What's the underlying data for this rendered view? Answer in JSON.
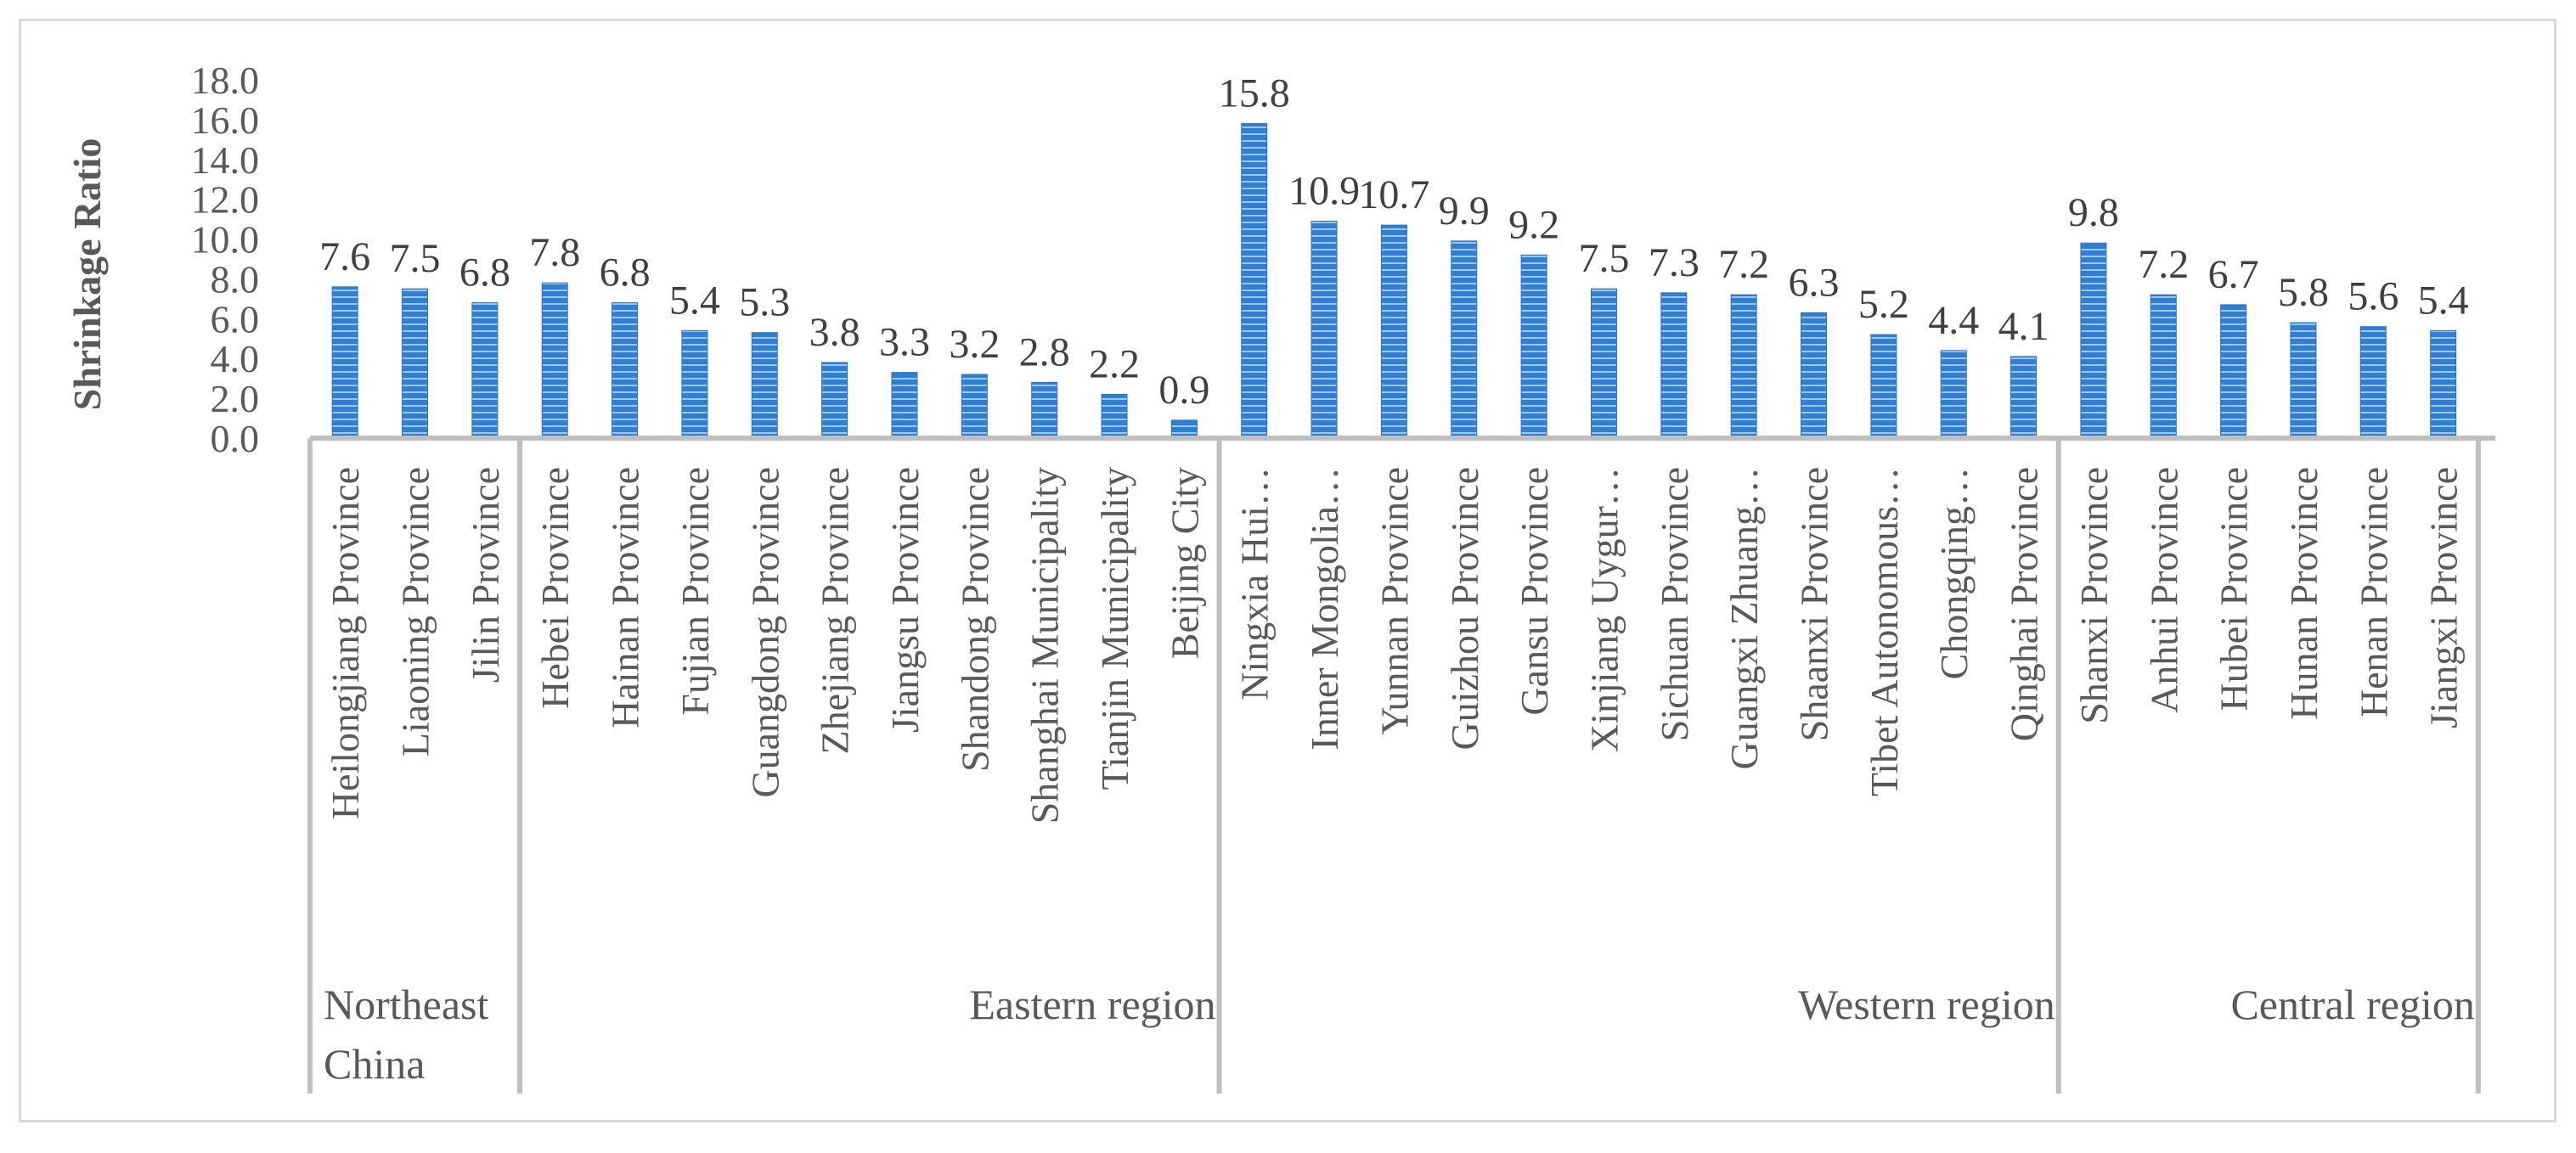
{
  "chart_data": {
    "type": "bar",
    "ylabel": "Shrinkage Ratio",
    "ylim": [
      0,
      18
    ],
    "yticks": [
      "0.0",
      "2.0",
      "4.0",
      "6.0",
      "8.0",
      "10.0",
      "12.0",
      "14.0",
      "16.0",
      "18.0"
    ],
    "grid": false,
    "legend": "none",
    "bar_color": "#2f7fd4",
    "groups": [
      {
        "name": "Northeast China",
        "label_lines": [
          "Northeast",
          "China"
        ],
        "categories": [
          "Heilongjiang Province",
          "Liaoning Province",
          "Jilin Province"
        ],
        "values": [
          7.6,
          7.5,
          6.8
        ]
      },
      {
        "name": "Eastern region",
        "label_lines": [
          "Eastern region"
        ],
        "categories": [
          "Hebei Province",
          "Hainan Province",
          "Fujian Province",
          "Guangdong Province",
          "Zhejiang Province",
          "Jiangsu Province",
          "Shandong Province",
          "Shanghai Municipality",
          "Tianjin Municipality",
          "Beijing City"
        ],
        "values": [
          7.8,
          6.8,
          5.4,
          5.3,
          3.8,
          3.3,
          3.2,
          2.8,
          2.2,
          0.9
        ]
      },
      {
        "name": "Western region",
        "label_lines": [
          "Western region"
        ],
        "categories": [
          "Ningxia Hui…",
          "Inner Mongolia…",
          "Yunnan Province",
          "Guizhou Province",
          "Gansu Province",
          "Xinjiang Uygur…",
          "Sichuan Province",
          "Guangxi Zhuang…",
          "Shaanxi Province",
          "Tibet Autonomous…",
          "Chongqing…",
          "Qinghai Province"
        ],
        "values": [
          15.8,
          10.9,
          10.7,
          9.9,
          9.2,
          7.5,
          7.3,
          7.2,
          6.3,
          5.2,
          4.4,
          4.1
        ]
      },
      {
        "name": "Central region",
        "label_lines": [
          "Central region"
        ],
        "categories": [
          "Shanxi Province",
          "Anhui Province",
          "Hubei Province",
          "Hunan Province",
          "Henan Province",
          "Jiangxi Province"
        ],
        "values": [
          9.8,
          7.2,
          6.7,
          5.8,
          5.6,
          5.4
        ]
      }
    ]
  }
}
